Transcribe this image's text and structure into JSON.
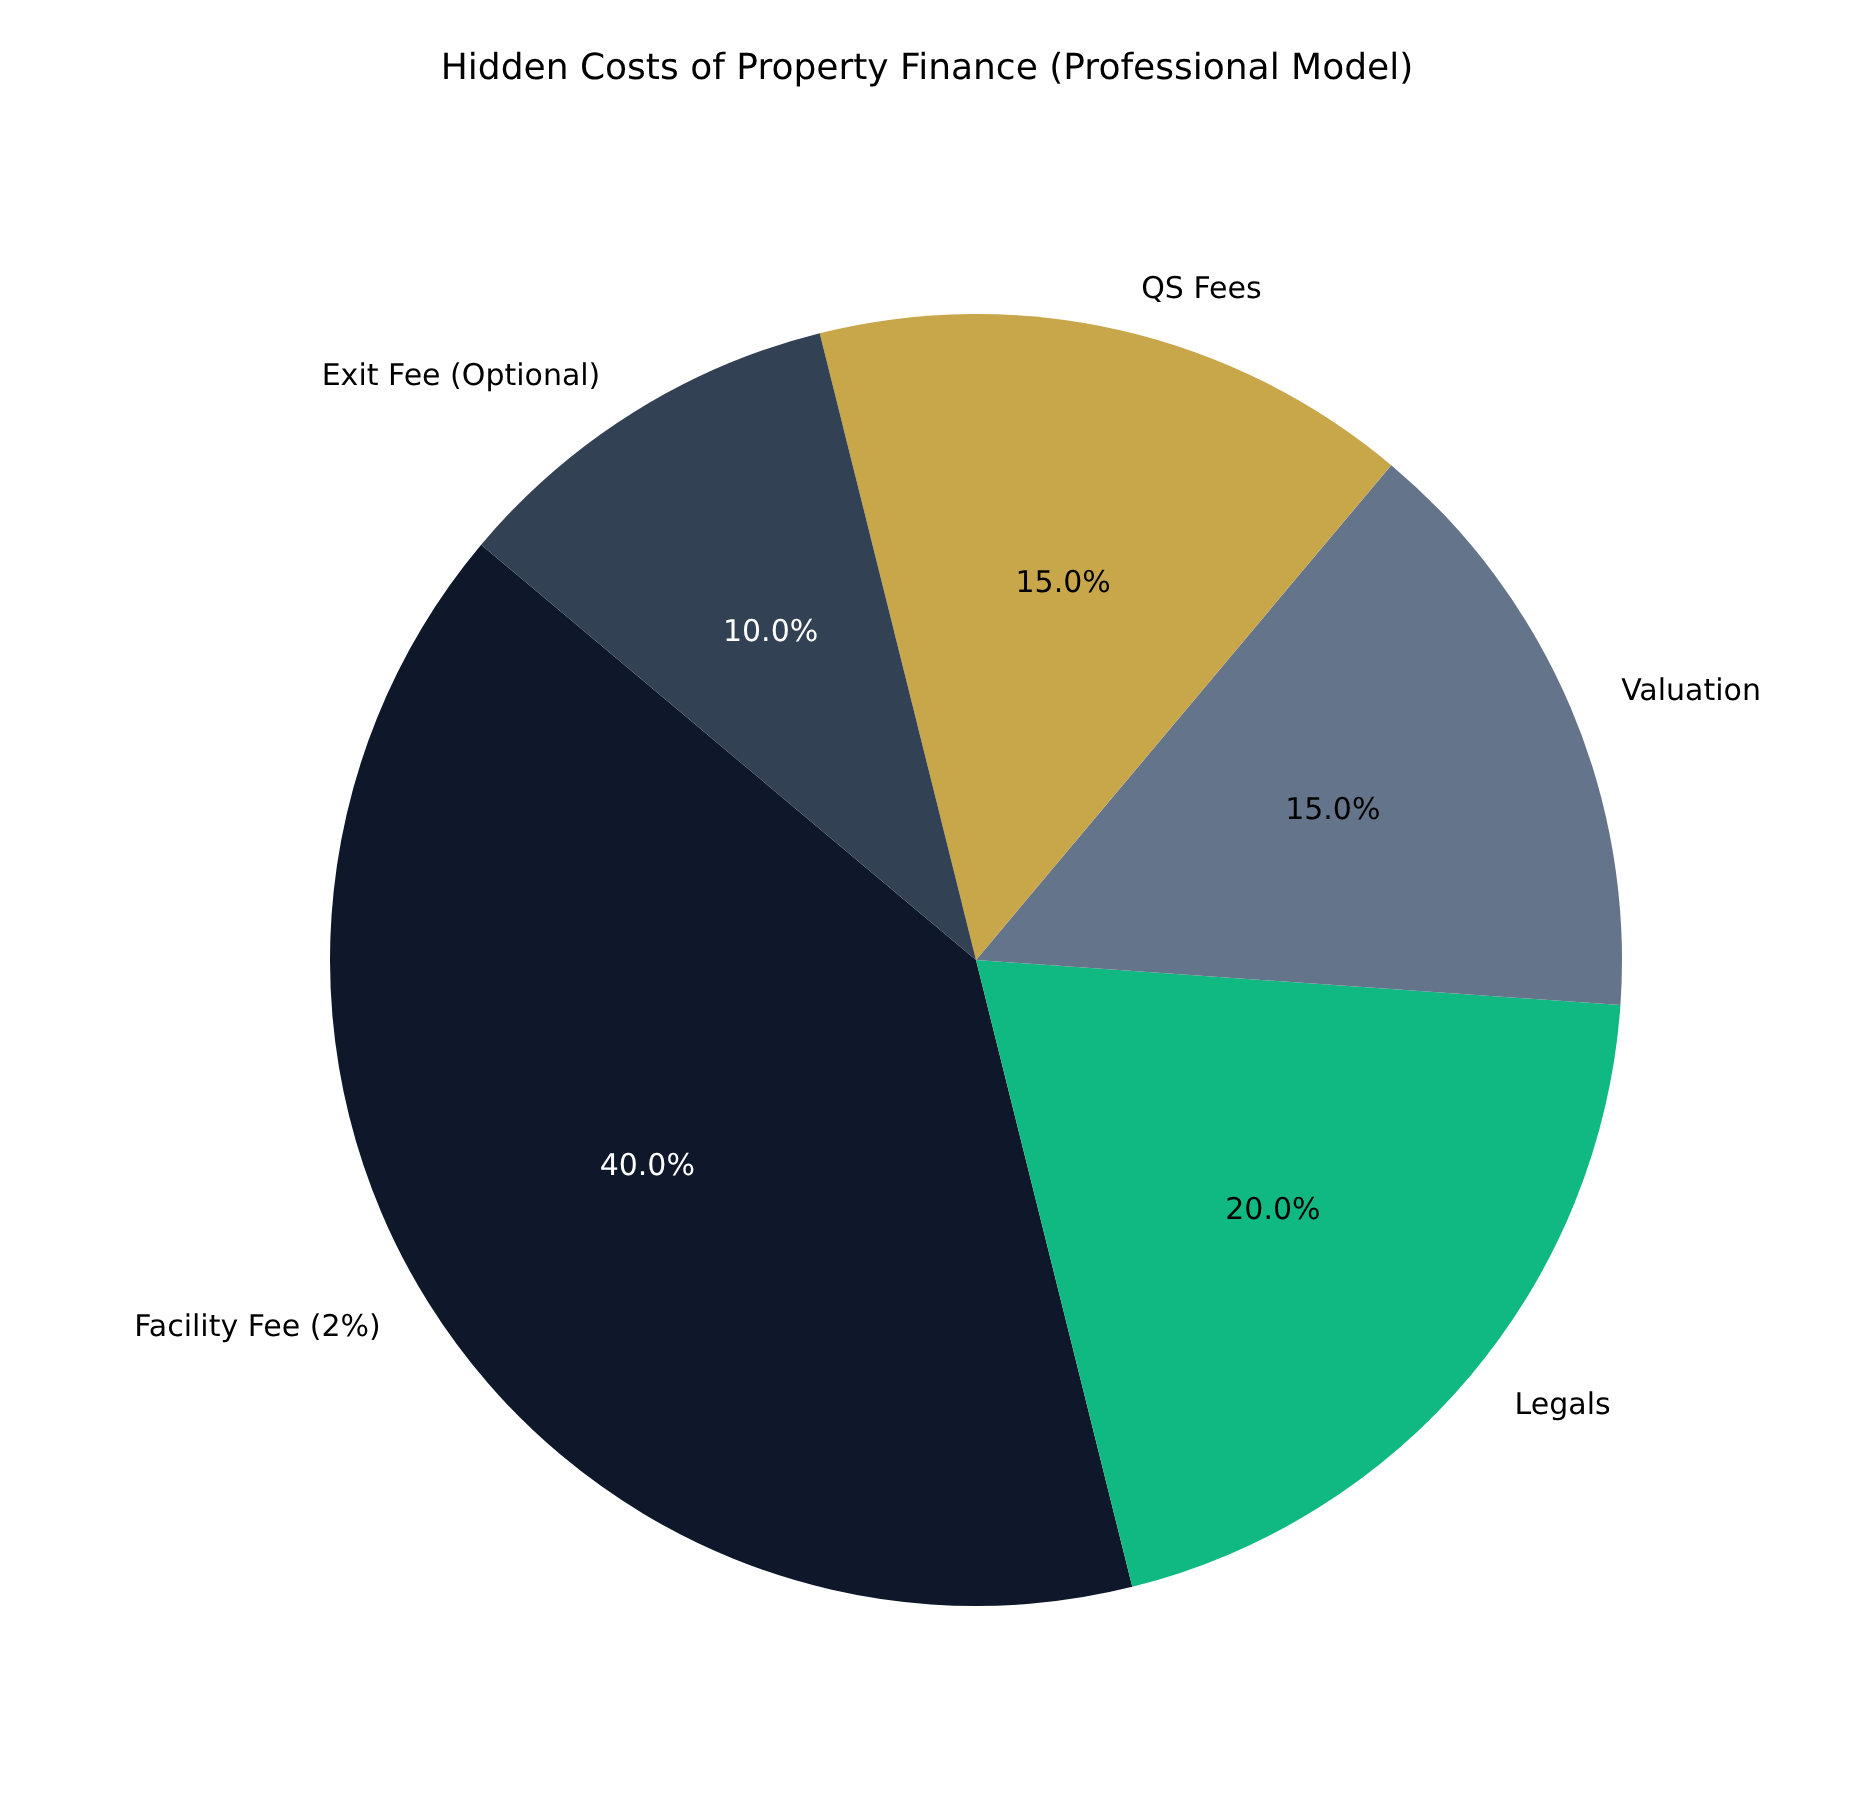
{
  "chart_data": {
    "type": "pie",
    "title": "Hidden Costs of Property Finance (Professional Model)",
    "categories": [
      "Facility Fee (2%)",
      "Legals",
      "Valuation",
      "QS Fees",
      "Exit Fee (Optional)"
    ],
    "values": [
      40,
      20,
      15,
      15,
      10
    ],
    "colors": [
      "#0f172a",
      "#10b981",
      "#64748b",
      "#c8a64a",
      "#334155"
    ],
    "value_labels": [
      "40.0%",
      "20.0%",
      "15.0%",
      "15.0%",
      "10.0%"
    ],
    "legend": false
  }
}
